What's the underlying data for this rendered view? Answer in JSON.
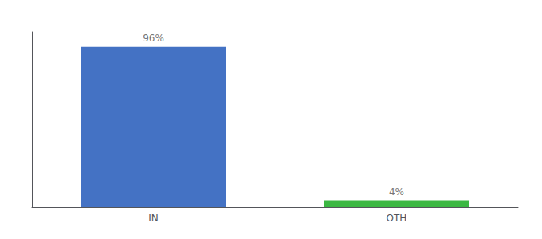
{
  "chart_data": {
    "type": "bar",
    "categories": [
      "IN",
      "OTH"
    ],
    "values": [
      96,
      4
    ],
    "value_labels": [
      "96%",
      "4%"
    ],
    "colors": [
      "#4472c4",
      "#3cb843"
    ],
    "ylim": [
      0,
      105
    ],
    "grid": false,
    "data_labels": true,
    "tick_labels": "x"
  }
}
